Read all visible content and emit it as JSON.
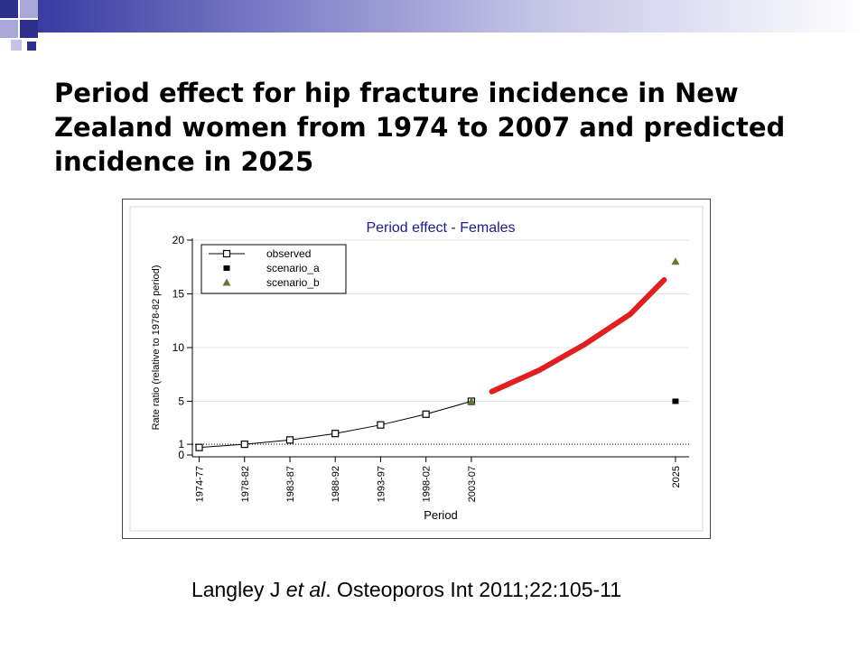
{
  "slide": {
    "title": "Period effect for hip fracture incidence in New Zealand women from 1974 to 2007 and predicted incidence in 2025",
    "citation": {
      "authors": "Langley J ",
      "etal": "et al",
      "journal": ". Osteoporos Int 2011;22:105-11"
    }
  },
  "colors": {
    "deco_dark": "#2e2e8c",
    "deco_light": "#a8a8d8",
    "chart_title": "#1a1a99",
    "scenario_b": "#5b7a2e",
    "trend": "#e02020"
  },
  "chart_data": {
    "type": "line",
    "title": "Period effect - Females",
    "xlabel": "Period",
    "ylabel": "Rate ratio (relative to 1978-82 period)",
    "categories": [
      "1974-77",
      "1978-82",
      "1983-87",
      "1988-92",
      "1993-97",
      "1998-02",
      "2003-07",
      "2025"
    ],
    "x": [
      0,
      1,
      2,
      3,
      4,
      5,
      6,
      10.5
    ],
    "ylim": [
      0,
      20
    ],
    "yticks": [
      0,
      1,
      5,
      10,
      15,
      20
    ],
    "reference_line": 1,
    "legend_position": "top-left",
    "grid": "horizontal",
    "series": [
      {
        "name": "observed",
        "marker": "hollow-square",
        "x": [
          0,
          1,
          2,
          3,
          4,
          5,
          6
        ],
        "values": [
          0.7,
          1.0,
          1.4,
          2.0,
          2.8,
          3.8,
          5.0
        ]
      },
      {
        "name": "scenario_a",
        "marker": "filled-square",
        "x": [
          6,
          10.5
        ],
        "values": [
          5.0,
          5.0
        ]
      },
      {
        "name": "scenario_b",
        "marker": "triangle",
        "x": [
          6,
          10.5
        ],
        "values": [
          5.0,
          18.0
        ]
      }
    ],
    "annotation_curve": {
      "x": [
        6.45,
        7.5,
        8.5,
        9.5,
        10.25
      ],
      "values": [
        5.9,
        7.9,
        10.3,
        13.1,
        16.3
      ]
    }
  }
}
